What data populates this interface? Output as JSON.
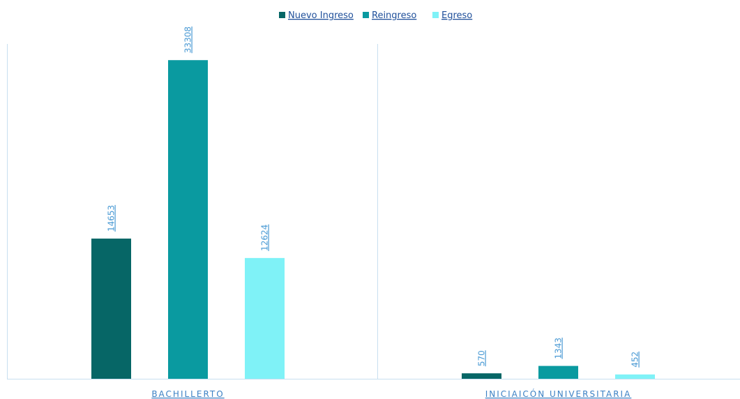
{
  "chart_data": {
    "type": "bar",
    "categories": [
      "BACHILLERTO",
      "INICIAICÓN UNIVERSITARIA"
    ],
    "series": [
      {
        "name": "Nuevo Ingreso",
        "color": "#066666",
        "values": [
          14653,
          570
        ]
      },
      {
        "name": "Reingreso",
        "color": "#0a9aa0",
        "values": [
          33308,
          1343
        ]
      },
      {
        "name": "Egreso",
        "color": "#7ff2f7",
        "values": [
          12624,
          452
        ]
      }
    ],
    "ylim": [
      0,
      35000
    ],
    "legend": "top"
  }
}
